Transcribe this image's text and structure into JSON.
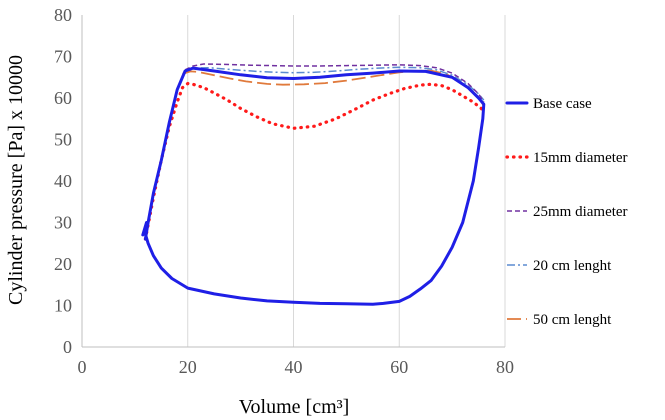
{
  "chart_data": {
    "type": "line",
    "title": "",
    "xlabel": "Volume [cm³]",
    "ylabel": "Cylinder pressure [Pa] x 10000",
    "xlim": [
      0,
      80
    ],
    "ylim": [
      0,
      80
    ],
    "xticks": [
      0,
      20,
      40,
      60,
      80
    ],
    "yticks": [
      0,
      10,
      20,
      30,
      40,
      50,
      60,
      70,
      80
    ],
    "grid": "vertical",
    "legend_position": "right",
    "series": [
      {
        "name": "Base case",
        "color": "#1f1fe6",
        "style": "solid",
        "x": [
          12,
          12.5,
          13.5,
          15,
          16.5,
          18,
          19.5,
          21,
          25,
          30,
          35,
          40,
          45,
          50,
          55,
          60,
          65,
          70,
          73,
          75,
          76,
          75.8,
          75,
          74,
          72,
          70,
          68,
          66,
          64,
          62,
          60,
          57,
          55,
          50,
          45,
          40,
          35,
          30,
          25,
          20,
          17,
          15,
          13.5,
          12.5,
          11.8,
          12.2,
          11.5
        ],
        "y": [
          26,
          30,
          37,
          45,
          54,
          62,
          66.5,
          67.2,
          66.5,
          65.6,
          64.9,
          64.7,
          65,
          65.6,
          66,
          66.5,
          66.4,
          65,
          62.5,
          60,
          58.5,
          55,
          48,
          40,
          30,
          24,
          19.5,
          16,
          14,
          12.2,
          11,
          10.5,
          10.3,
          10.4,
          10.5,
          10.8,
          11.1,
          11.8,
          12.8,
          14.2,
          16.5,
          19,
          22,
          25,
          28,
          30,
          27
        ]
      },
      {
        "name": "15mm diameter",
        "color": "#ff1a1a",
        "style": "dotted",
        "x": [
          12,
          13.5,
          15,
          16.5,
          18,
          19,
          20,
          21,
          23,
          25,
          27.5,
          30,
          33,
          36,
          40,
          44,
          48,
          52,
          55,
          58,
          61,
          64,
          66,
          68,
          70,
          72,
          74,
          75.5,
          76
        ],
        "y": [
          26,
          36,
          45,
          53,
          59,
          62.5,
          63.5,
          63.3,
          62.5,
          61.2,
          59.5,
          57.5,
          55.5,
          53.8,
          52.7,
          53.2,
          55,
          57.5,
          59.5,
          61,
          62.3,
          63.1,
          63.3,
          63,
          62,
          60.5,
          59,
          57.5,
          56.5
        ]
      },
      {
        "name": "25mm diameter",
        "color": "#7030a0",
        "style": "dashed",
        "x": [
          19.5,
          21,
          23,
          27,
          32,
          36,
          40,
          45,
          50,
          55,
          60,
          64,
          67,
          70,
          73,
          75,
          76
        ],
        "y": [
          66.8,
          67.7,
          68.2,
          68.1,
          67.9,
          67.8,
          67.7,
          67.7,
          67.8,
          67.9,
          68,
          67.8,
          67.3,
          66,
          63.5,
          61,
          59
        ]
      },
      {
        "name": "20 cm lenght",
        "color": "#5b8bd0",
        "style": "dashdot",
        "x": [
          19.5,
          21,
          24,
          28,
          33,
          37,
          40,
          44,
          48,
          52,
          56,
          60,
          64,
          67,
          70,
          73,
          75,
          76
        ],
        "y": [
          66.6,
          67.2,
          67.3,
          66.9,
          66.4,
          66.2,
          66.1,
          66.2,
          66.5,
          66.9,
          67.2,
          67.4,
          67.3,
          66.8,
          65.5,
          63.2,
          61,
          59.5
        ]
      },
      {
        "name": "50 cm lenght",
        "color": "#e07a3c",
        "style": "longdash",
        "x": [
          19,
          20.5,
          22,
          25,
          28,
          31,
          35,
          38,
          42,
          46,
          50,
          54,
          57,
          60,
          63,
          66,
          69,
          72,
          74,
          75.5,
          76
        ],
        "y": [
          65.8,
          66.4,
          66.3,
          65.5,
          64.7,
          64,
          63.4,
          63.2,
          63.3,
          63.6,
          64.2,
          65,
          65.6,
          66.2,
          66.5,
          66.6,
          65.7,
          63.5,
          61.2,
          59.2,
          58
        ]
      }
    ]
  }
}
